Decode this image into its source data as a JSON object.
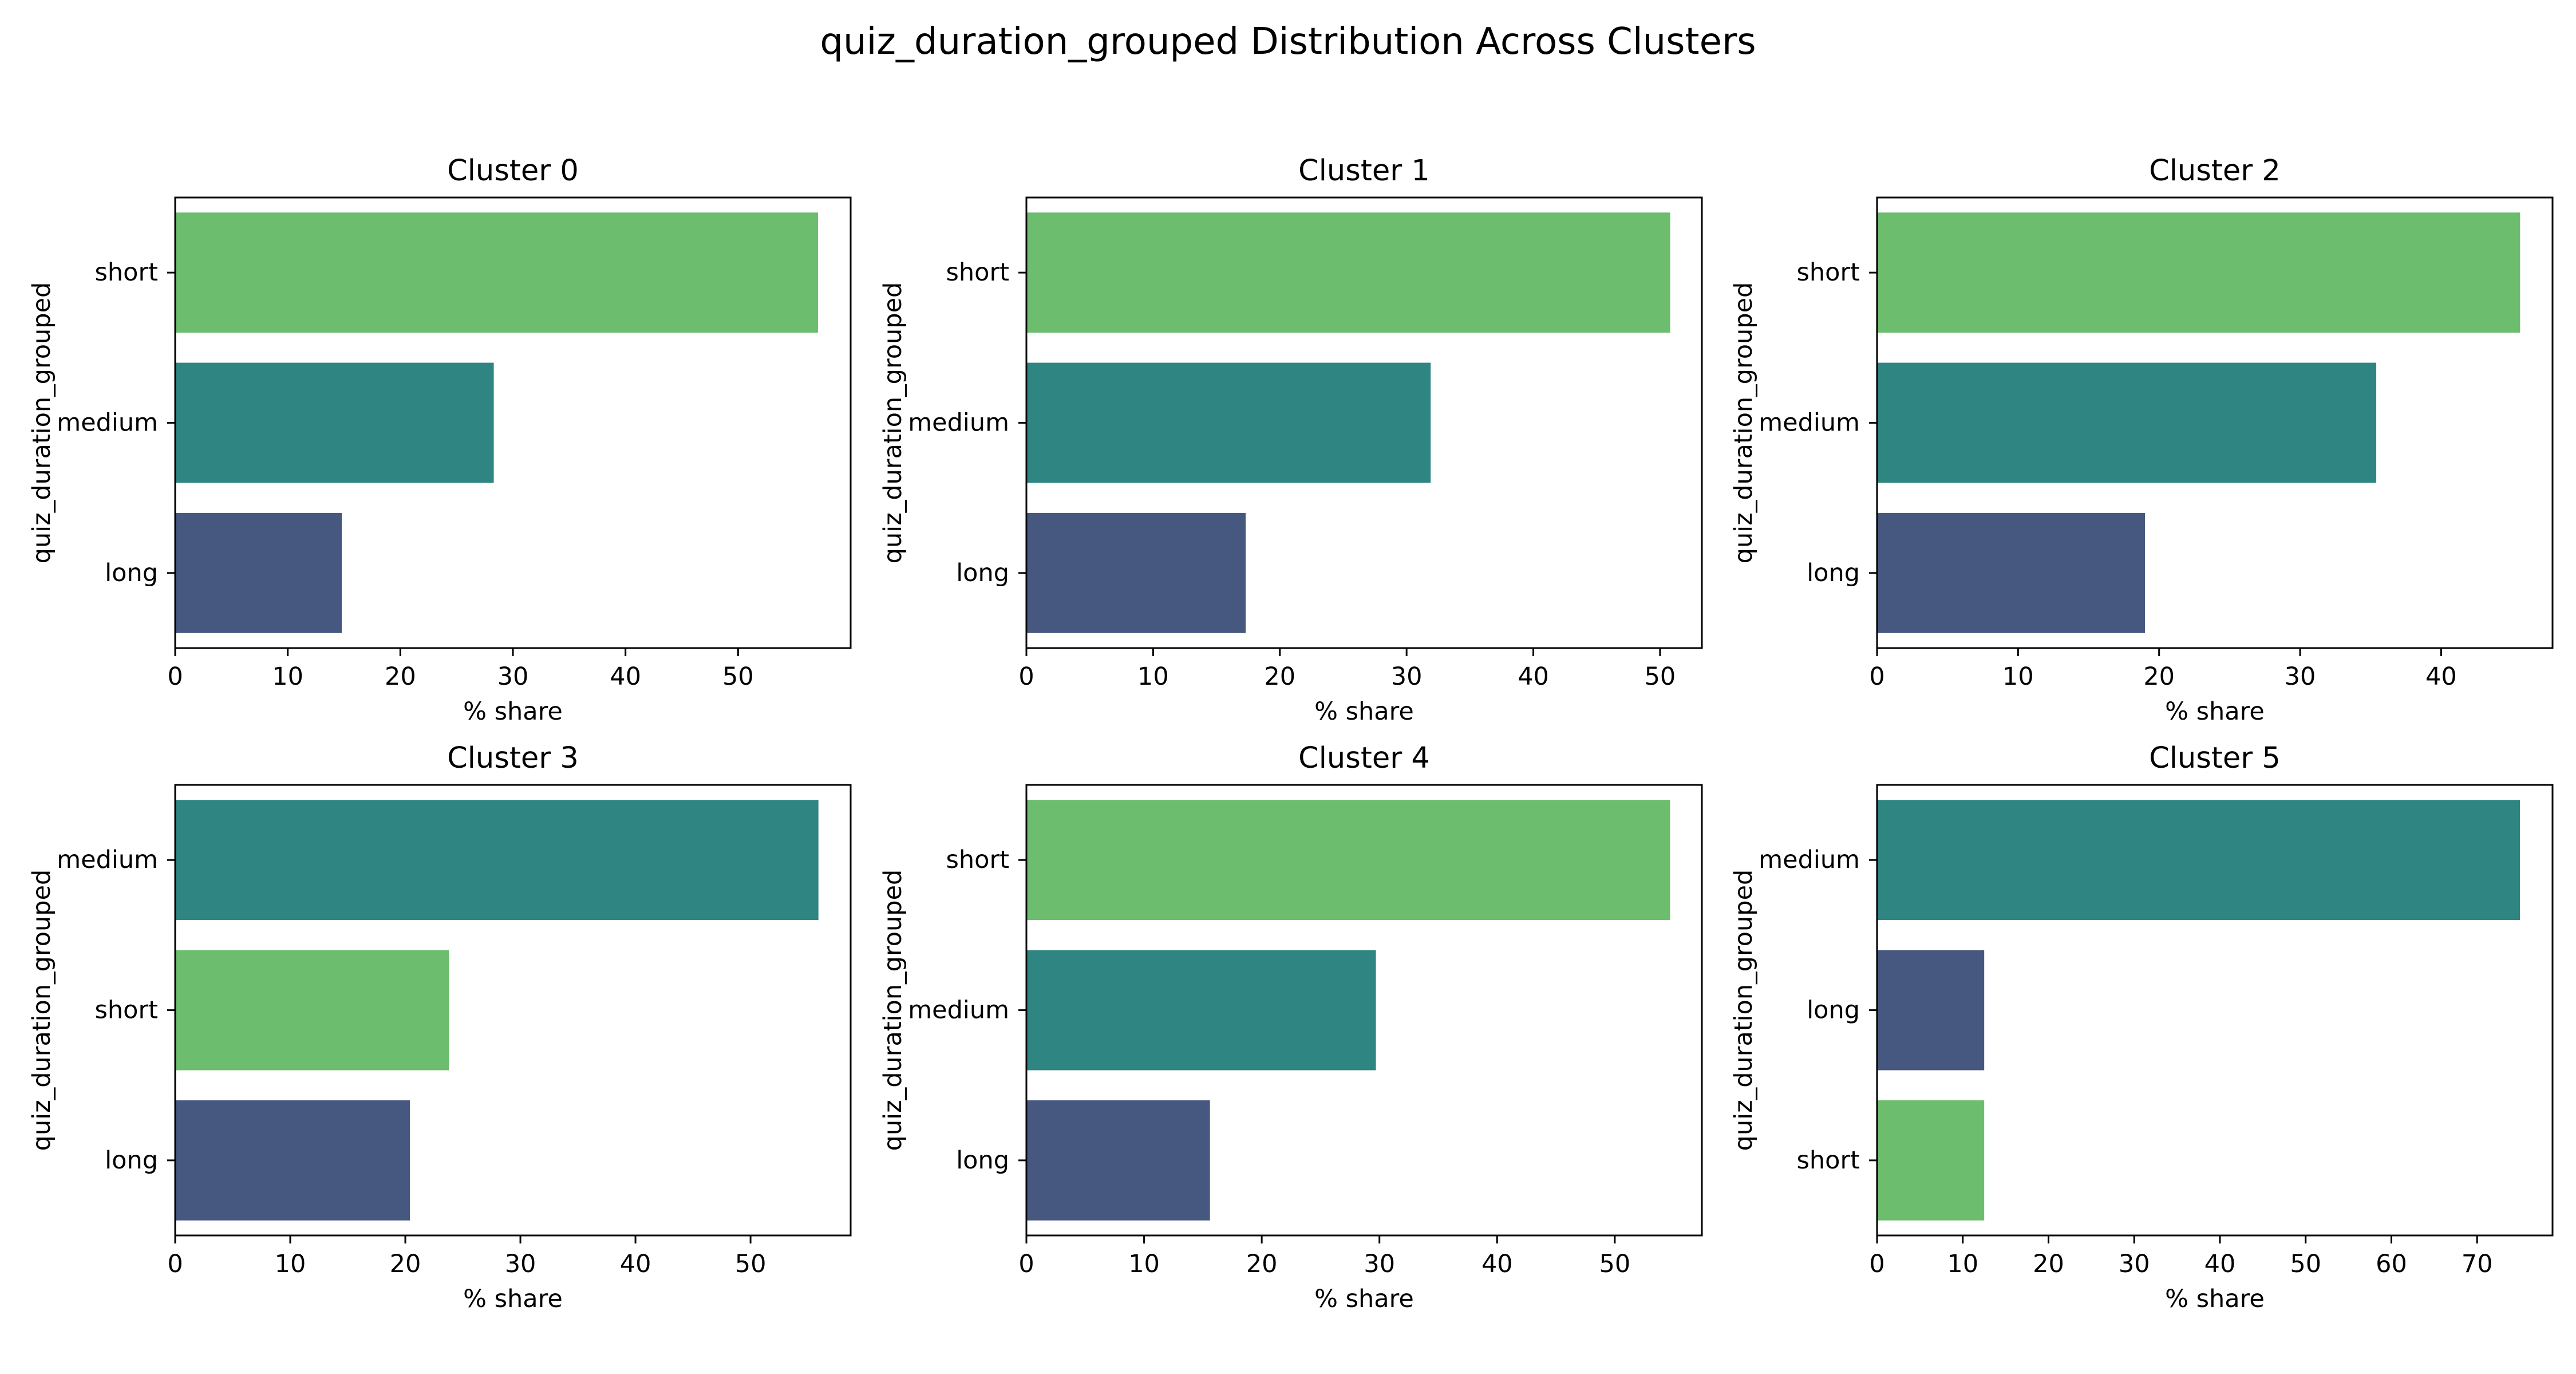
{
  "figure": {
    "title": "quiz_duration_grouped Distribution Across Clusters"
  },
  "palette": {
    "short": "#6cbd6d",
    "medium": "#2e8581",
    "long": "#465880"
  },
  "chart_data": [
    {
      "type": "bar",
      "orientation": "horizontal",
      "title": "Cluster 0",
      "xlabel": "% share",
      "ylabel": "quiz_duration_grouped",
      "categories": [
        "short",
        "medium",
        "long"
      ],
      "values": [
        57.1,
        28.3,
        14.8
      ],
      "xlim": [
        0,
        60
      ],
      "xticks": [
        0,
        10,
        20,
        30,
        40,
        50
      ]
    },
    {
      "type": "bar",
      "orientation": "horizontal",
      "title": "Cluster 1",
      "xlabel": "% share",
      "ylabel": "quiz_duration_grouped",
      "categories": [
        "short",
        "medium",
        "long"
      ],
      "values": [
        50.8,
        31.9,
        17.3
      ],
      "xlim": [
        0,
        53.3
      ],
      "xticks": [
        0,
        10,
        20,
        30,
        40,
        50
      ]
    },
    {
      "type": "bar",
      "orientation": "horizontal",
      "title": "Cluster 2",
      "xlabel": "% share",
      "ylabel": "quiz_duration_grouped",
      "categories": [
        "short",
        "medium",
        "long"
      ],
      "values": [
        45.6,
        35.4,
        19.0
      ],
      "xlim": [
        0,
        47.9
      ],
      "xticks": [
        0,
        10,
        20,
        30,
        40
      ]
    },
    {
      "type": "bar",
      "orientation": "horizontal",
      "title": "Cluster 3",
      "xlabel": "% share",
      "ylabel": "quiz_duration_grouped",
      "categories": [
        "medium",
        "short",
        "long"
      ],
      "values": [
        55.9,
        23.8,
        20.4
      ],
      "xlim": [
        0,
        58.7
      ],
      "xticks": [
        0,
        10,
        20,
        30,
        40,
        50
      ]
    },
    {
      "type": "bar",
      "orientation": "horizontal",
      "title": "Cluster 4",
      "xlabel": "% share",
      "ylabel": "quiz_duration_grouped",
      "categories": [
        "short",
        "medium",
        "long"
      ],
      "values": [
        54.7,
        29.7,
        15.6
      ],
      "xlim": [
        0,
        57.4
      ],
      "xticks": [
        0,
        10,
        20,
        30,
        40,
        50
      ]
    },
    {
      "type": "bar",
      "orientation": "horizontal",
      "title": "Cluster 5",
      "xlabel": "% share",
      "ylabel": "quiz_duration_grouped",
      "categories": [
        "medium",
        "long",
        "short"
      ],
      "values": [
        75.0,
        12.5,
        12.5
      ],
      "xlim": [
        0,
        78.8
      ],
      "xticks": [
        0,
        10,
        20,
        30,
        40,
        50,
        60,
        70
      ]
    }
  ]
}
